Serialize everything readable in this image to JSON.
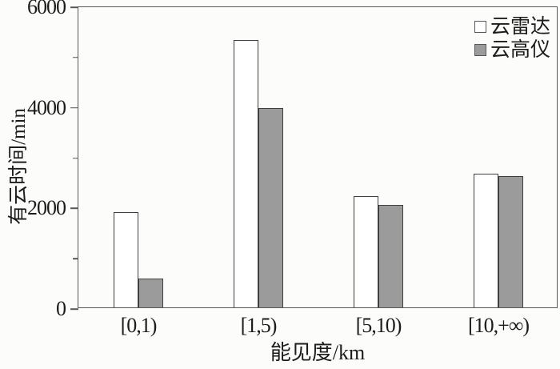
{
  "chart_data": {
    "type": "bar",
    "title": "",
    "xlabel": "能见度/km",
    "ylabel": "有云时间/min",
    "categories": [
      "[0,1)",
      "[1,5)",
      "[5,10)",
      "[10,+∞)"
    ],
    "series": [
      {
        "name": "云雷达",
        "fill": "#ffffff",
        "values": [
          1890,
          5320,
          2210,
          2660
        ]
      },
      {
        "name": "云高仪",
        "fill": "#9b9b9b",
        "values": [
          570,
          3970,
          2040,
          2610
        ]
      }
    ],
    "ylim": [
      0,
      6000
    ],
    "y_major_ticks": [
      0,
      2000,
      4000,
      6000
    ],
    "y_minor_ticks": [
      1000,
      3000,
      5000
    ],
    "grid": "off",
    "legend_position": "top-right-inside",
    "colors": {
      "axis": "#58585a",
      "bar_border": "#3f3f3f",
      "background": "#fcfcfa"
    }
  }
}
